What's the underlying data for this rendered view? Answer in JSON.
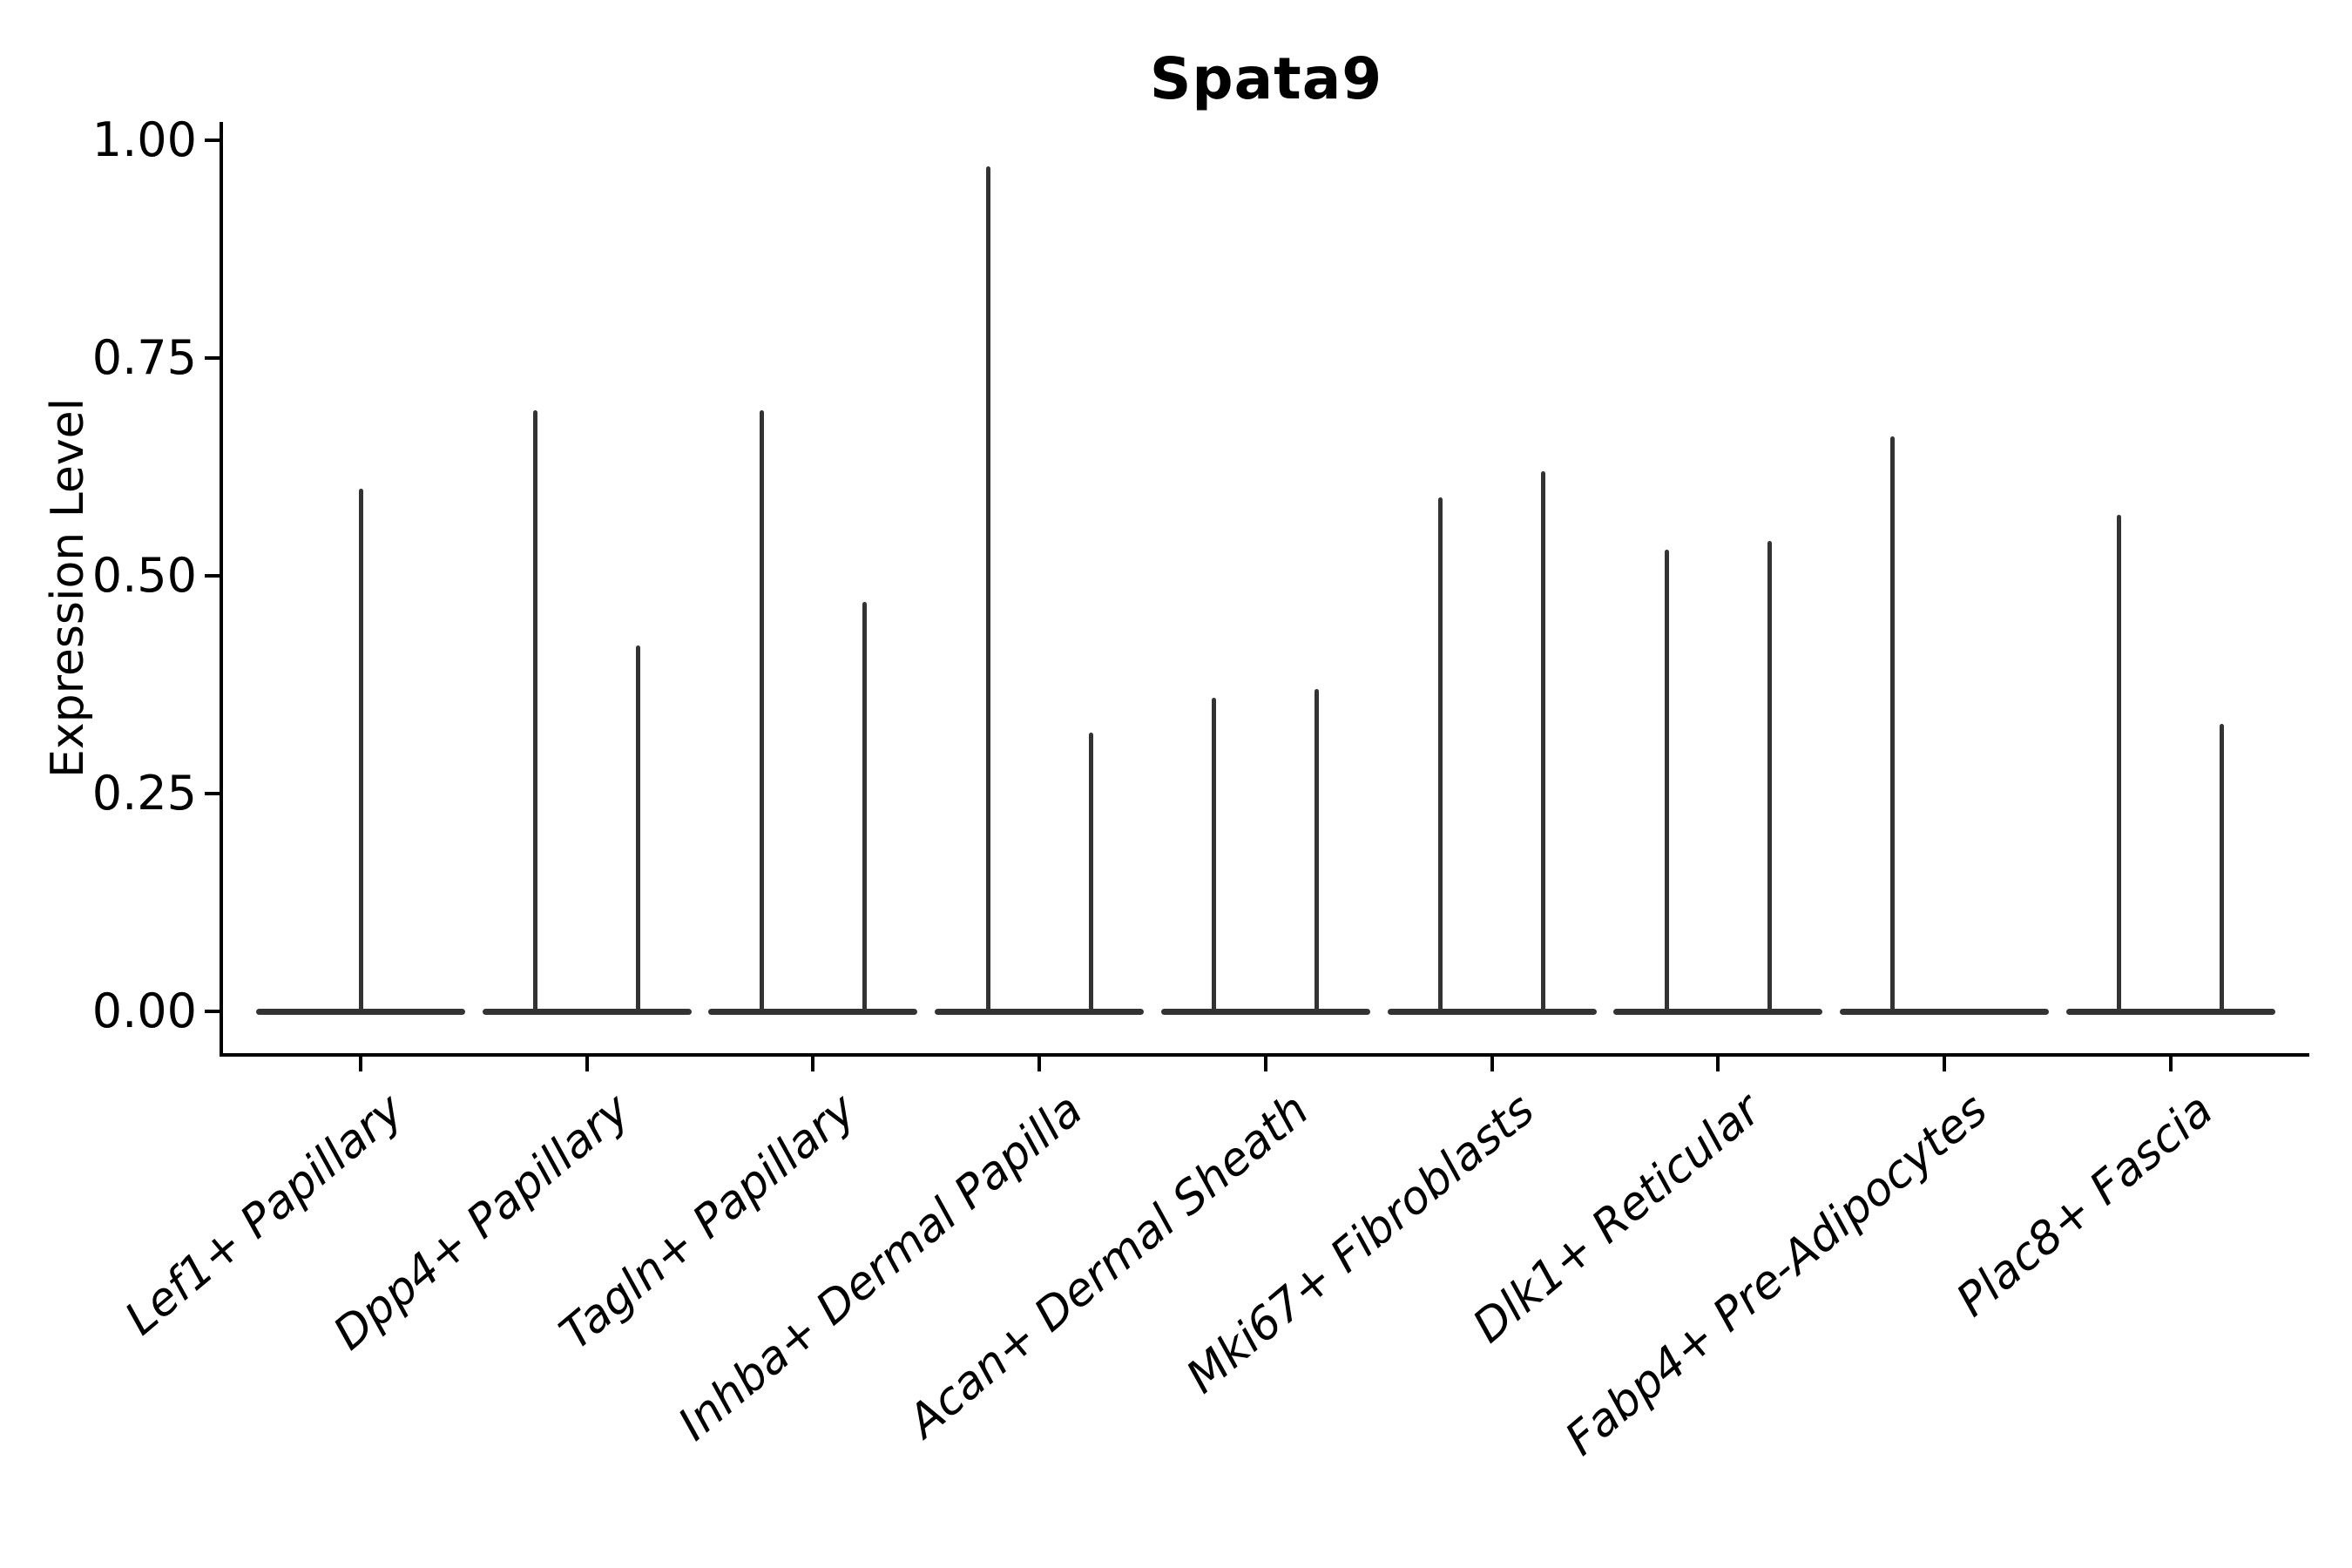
{
  "figure": {
    "title": "Spata9",
    "ylabel": "Expression Level"
  },
  "chart_data": {
    "type": "violin",
    "title": "Spata9",
    "xlabel": "",
    "ylabel": "Expression Level",
    "ylim": [
      0,
      1
    ],
    "grid": false,
    "legend": "none",
    "background": "#ffffff",
    "axis_color": "#000000",
    "violin_color": "#333333",
    "yticks": [
      {
        "value": 0.0,
        "label": "0.00"
      },
      {
        "value": 0.25,
        "label": "0.25"
      },
      {
        "value": 0.5,
        "label": "0.50"
      },
      {
        "value": 0.75,
        "label": "0.75"
      },
      {
        "value": 1.0,
        "label": "1.00"
      }
    ],
    "categories": [
      "Lef1+ Papillary",
      "Dpp4+ Papillary",
      "Tagln+ Papillary",
      "Inhba+ Dermal Papilla",
      "Acan+ Dermal Sheath",
      "Mki67+ Fibroblasts",
      "Dlk1+ Reticular",
      "Fabp4+ Pre-Adipocytes",
      "Plac8+ Fascia"
    ],
    "violins": [
      {
        "category": "Lef1+ Papillary",
        "spikes": [
          {
            "pos": "center",
            "max": 0.6
          }
        ]
      },
      {
        "category": "Dpp4+ Papillary",
        "spikes": [
          {
            "pos": "left",
            "max": 0.69
          },
          {
            "pos": "right",
            "max": 0.42
          }
        ]
      },
      {
        "category": "Tagln+ Papillary",
        "spikes": [
          {
            "pos": "left",
            "max": 0.69
          },
          {
            "pos": "right",
            "max": 0.47
          }
        ]
      },
      {
        "category": "Inhba+ Dermal Papilla",
        "spikes": [
          {
            "pos": "left",
            "max": 0.97
          },
          {
            "pos": "right",
            "max": 0.32
          }
        ]
      },
      {
        "category": "Acan+ Dermal Sheath",
        "spikes": [
          {
            "pos": "left",
            "max": 0.36
          },
          {
            "pos": "right",
            "max": 0.37
          }
        ]
      },
      {
        "category": "Mki67+ Fibroblasts",
        "spikes": [
          {
            "pos": "left",
            "max": 0.59
          },
          {
            "pos": "right",
            "max": 0.62
          }
        ]
      },
      {
        "category": "Dlk1+ Reticular",
        "spikes": [
          {
            "pos": "left",
            "max": 0.53
          },
          {
            "pos": "right",
            "max": 0.54
          }
        ]
      },
      {
        "category": "Fabp4+ Pre-Adipocytes",
        "spikes": [
          {
            "pos": "left",
            "max": 0.66
          }
        ]
      },
      {
        "category": "Plac8+ Fascia",
        "spikes": [
          {
            "pos": "left",
            "max": 0.57
          },
          {
            "pos": "right",
            "max": 0.33
          }
        ]
      }
    ]
  }
}
